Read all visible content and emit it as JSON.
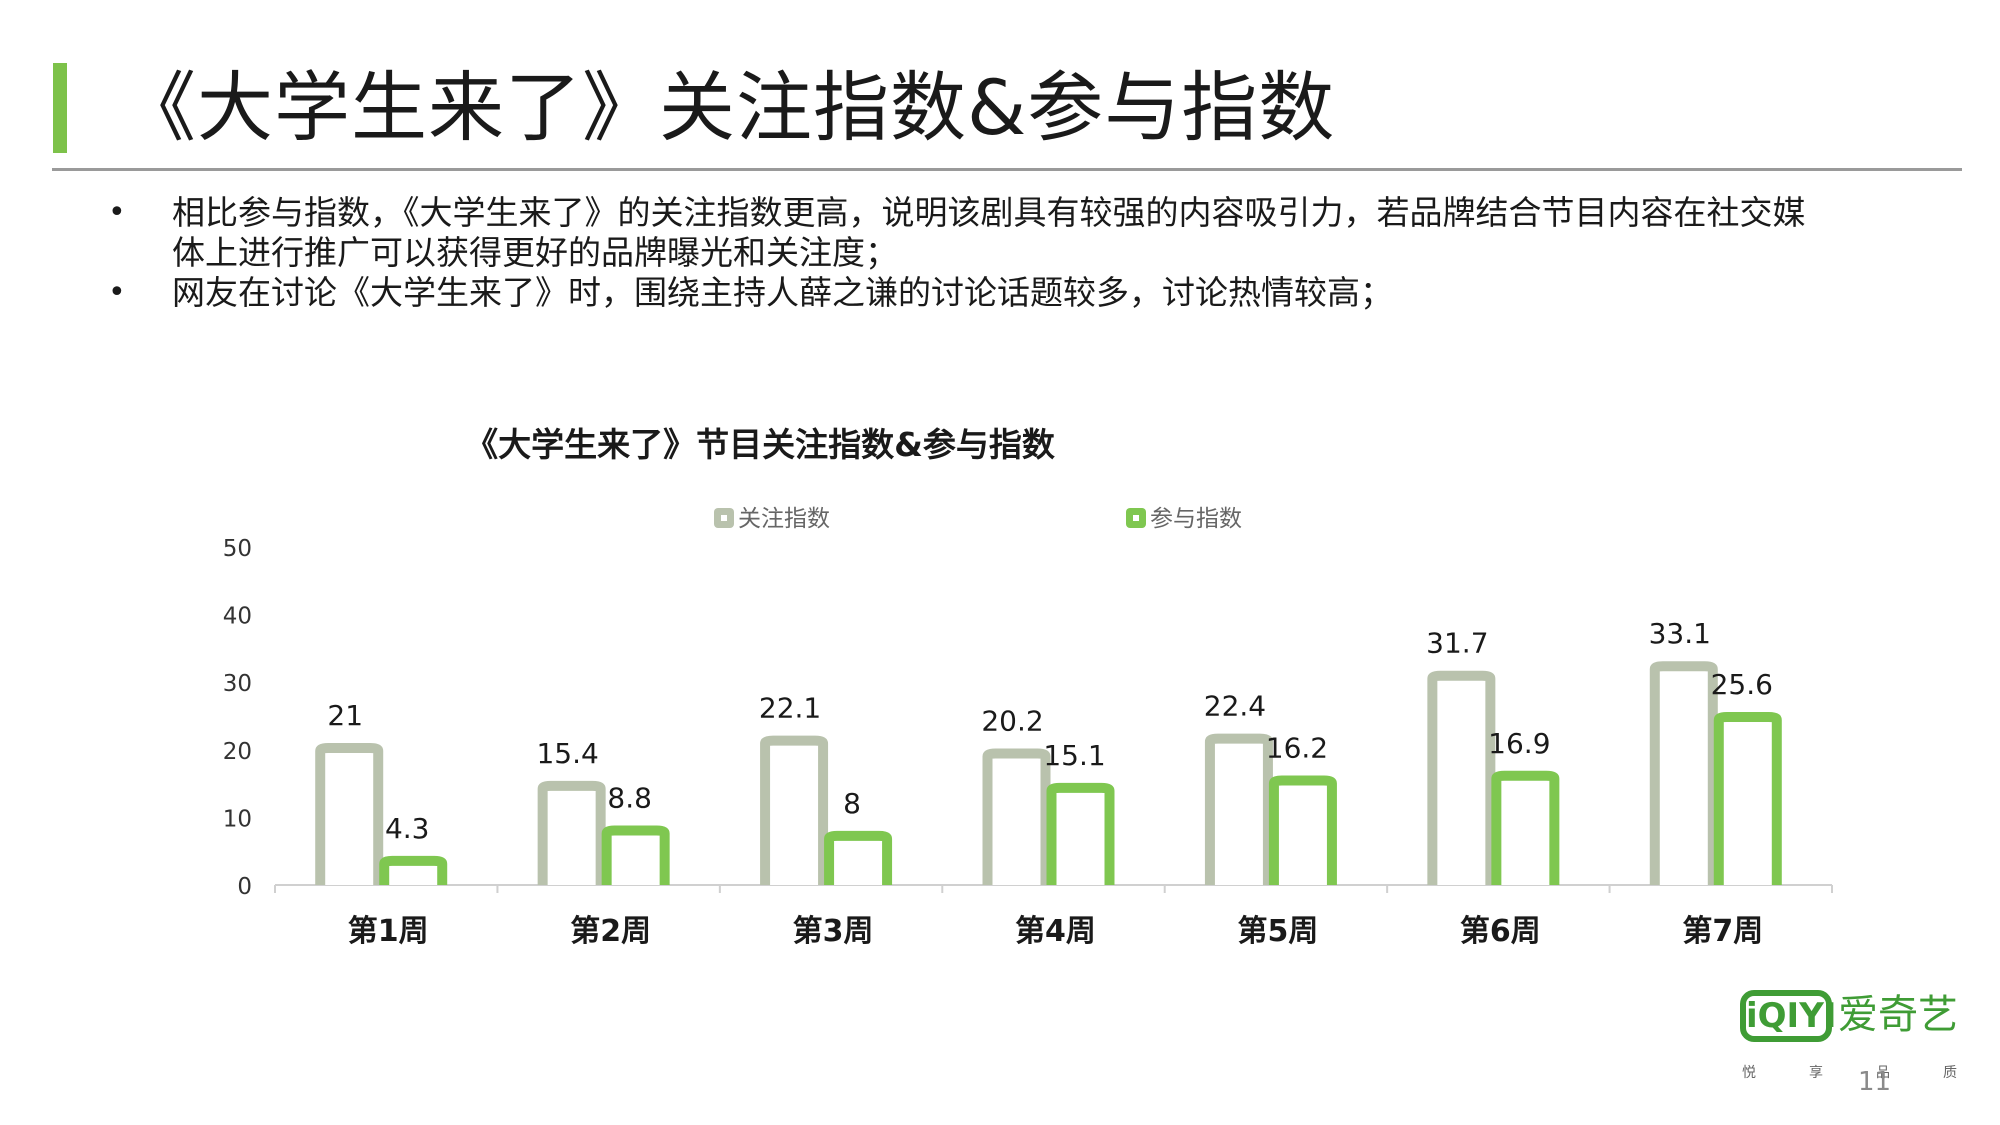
{
  "slide": {
    "title": "《大学生来了》关注指数&参与指数",
    "bullets": [
      "相比参与指数，《大学生来了》的关注指数更高，说明该剧具有较强的内容吸引力，若品牌结合节目内容在社交媒",
      "体上进行推广可以获得更好的品牌曝光和关注度；",
      "网友在讨论《大学生来了》时，围绕主持人薛之谦的讨论话题较多，讨论热情较高；"
    ],
    "accent_color": "#7dc24a",
    "page_number": "11"
  },
  "brand": {
    "logo_text": "iQIYI",
    "name": "爱奇艺",
    "slogan": [
      "悦",
      "享",
      "品",
      "质"
    ]
  },
  "chart_data": {
    "type": "bar",
    "title": "《大学生来了》节目关注指数&参与指数",
    "categories": [
      "第1周",
      "第2周",
      "第3周",
      "第4周",
      "第5周",
      "第6周",
      "第7周"
    ],
    "series": [
      {
        "name": "关注指数",
        "values": [
          21,
          15.4,
          22.1,
          20.2,
          22.4,
          31.7,
          33.1
        ],
        "color": "#b9c2ad"
      },
      {
        "name": "参与指数",
        "values": [
          4.3,
          8.8,
          8,
          15.1,
          16.2,
          16.9,
          25.6
        ],
        "color": "#7fc750"
      }
    ],
    "data_labels": [
      [
        "21",
        "15.4",
        "22.1",
        "20.2",
        "22.4",
        "31.7",
        "33.1"
      ],
      [
        "4.3",
        "8.8",
        "8",
        "15.1",
        "16.2",
        "16.9",
        "25.6"
      ]
    ],
    "yticks": [
      "0",
      "10",
      "20",
      "30",
      "40",
      "50"
    ],
    "ylim": [
      0,
      50
    ],
    "legend_position": "top",
    "grid": false,
    "xlabel": "",
    "ylabel": ""
  }
}
